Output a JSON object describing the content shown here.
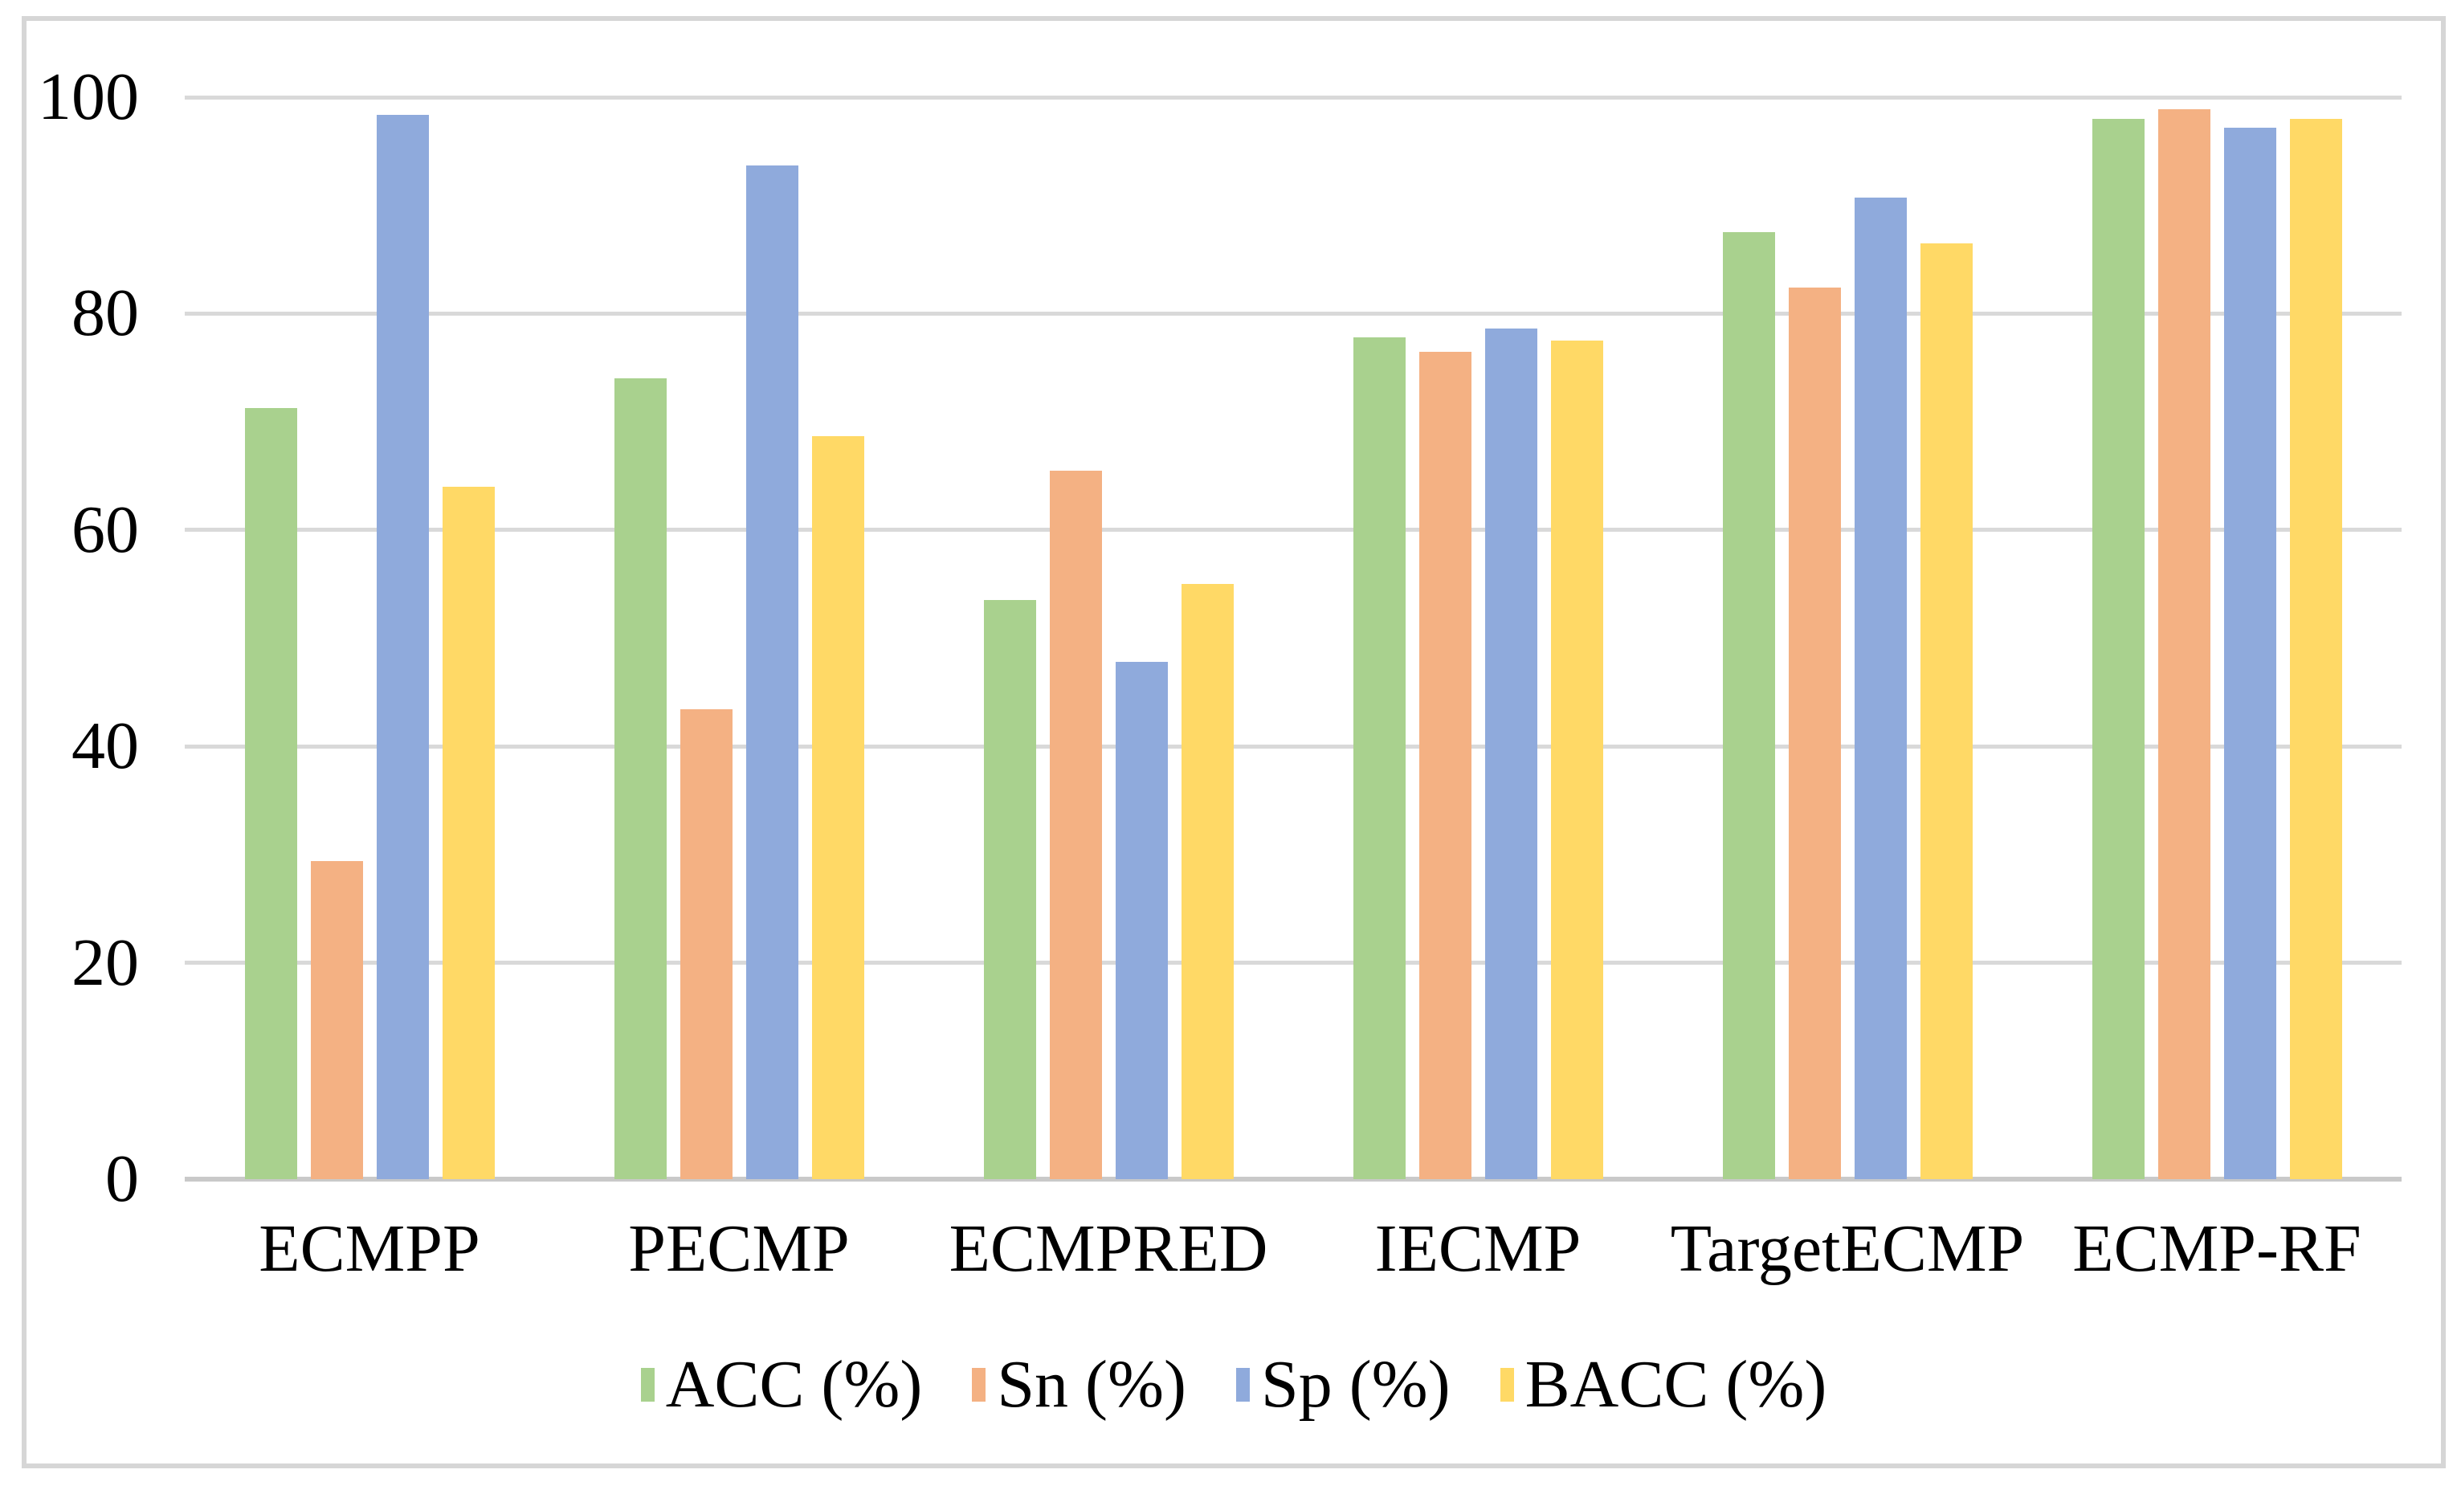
{
  "figure": {
    "background_color": "#FFFFFF",
    "frame_color": "#D6D6D6"
  },
  "chart_data": {
    "type": "bar",
    "title": "",
    "xlabel": "",
    "ylabel": "",
    "categories": [
      "ECMPP",
      "PECMP",
      "ECMPRED",
      "IECMP",
      "TargetECMP",
      "ECMP-RF"
    ],
    "series": [
      {
        "name": "ACC (%)",
        "color": "#A9D18E",
        "values": [
          71.3,
          74.0,
          53.5,
          77.8,
          87.5,
          98.0
        ]
      },
      {
        "name": "Sn (%)",
        "color": "#F4B183",
        "values": [
          29.4,
          43.4,
          65.5,
          76.5,
          82.4,
          98.9
        ]
      },
      {
        "name": "Sp (%)",
        "color": "#8FAADC",
        "values": [
          98.4,
          93.7,
          47.8,
          78.6,
          90.7,
          97.2
        ]
      },
      {
        "name": "BACC (%)",
        "color": "#FFD966",
        "values": [
          64.0,
          68.7,
          55.0,
          77.5,
          86.5,
          98.0
        ]
      }
    ],
    "y_axis": {
      "min": 0,
      "max": 100,
      "tick_interval": 20,
      "ticks": [
        0,
        20,
        40,
        60,
        80,
        100
      ]
    },
    "grid": true,
    "gridline_color": "#D9D9D9",
    "axis_line_color": "#C9C9C9",
    "legend_position": "bottom"
  }
}
